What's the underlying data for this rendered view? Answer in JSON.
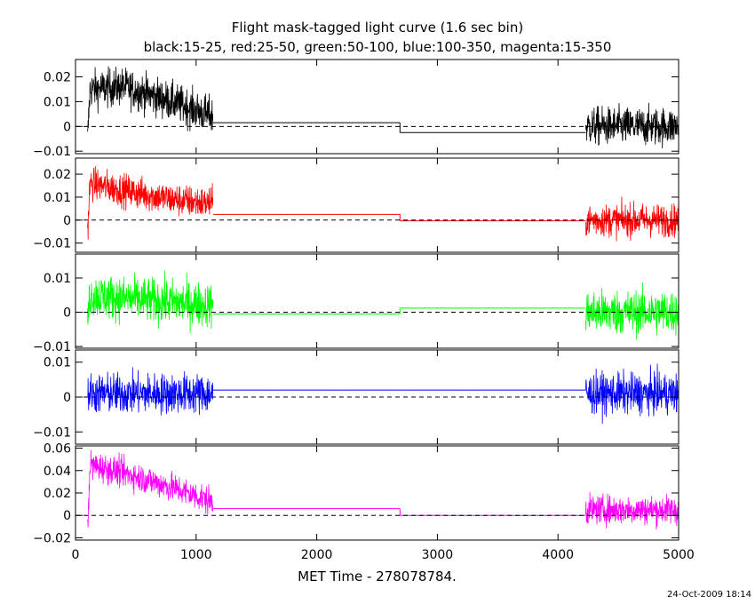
{
  "title": "Flight mask-tagged light curve (1.6 sec bin)",
  "subtitle": "black:15-25, red:25-50, green:50-100, blue:100-350, magenta:15-350",
  "xlabel": "MET Time - 278078784.",
  "timestamp": "24-Oct-2009 18:14",
  "chart_data": {
    "type": "line",
    "xlim": [
      0,
      5000
    ],
    "xticks": [
      "0",
      "1000",
      "2000",
      "3000",
      "4000",
      "5000"
    ],
    "zero_line": "dashed",
    "data_segments": [
      [
        100,
        1140
      ],
      [
        4230,
        5000
      ]
    ],
    "gap_intervals": [
      [
        1140,
        2690
      ],
      [
        2690,
        4230
      ]
    ],
    "panels": [
      {
        "name": "black:15-25",
        "color": "#000000",
        "ylim": [
          -0.011,
          0.027
        ],
        "yticks": [
          {
            "v": 0.02,
            "label": "0.02"
          },
          {
            "v": 0.01,
            "label": "0.01"
          },
          {
            "v": 0,
            "label": "0"
          },
          {
            "v": -0.01,
            "label": "−0.01"
          }
        ],
        "trend": [
          [
            100,
            -0.006
          ],
          [
            120,
            0.015
          ],
          [
            400,
            0.016
          ],
          [
            800,
            0.01
          ],
          [
            1140,
            0.004
          ],
          [
            4230,
            0.0
          ],
          [
            5000,
            0.0
          ]
        ],
        "noise": 0.006,
        "gap_levels": [
          0.0015,
          -0.0025
        ]
      },
      {
        "name": "red:25-50",
        "color": "#ff0000",
        "ylim": [
          -0.014,
          0.027
        ],
        "yticks": [
          {
            "v": 0.02,
            "label": "0.02"
          },
          {
            "v": 0.01,
            "label": "0.01"
          },
          {
            "v": 0,
            "label": "0"
          },
          {
            "v": -0.01,
            "label": "−0.01"
          }
        ],
        "trend": [
          [
            100,
            -0.006
          ],
          [
            120,
            0.016
          ],
          [
            400,
            0.013
          ],
          [
            800,
            0.009
          ],
          [
            1140,
            0.007
          ],
          [
            4230,
            0.0
          ],
          [
            5000,
            0.0
          ]
        ],
        "noise": 0.0055,
        "gap_levels": [
          0.0025,
          -0.0003
        ]
      },
      {
        "name": "green:50-100",
        "color": "#00ff00",
        "ylim": [
          -0.0105,
          0.017
        ],
        "yticks": [
          {
            "v": 0.01,
            "label": "0.01"
          },
          {
            "v": 0,
            "label": "0"
          },
          {
            "v": -0.01,
            "label": "−0.01"
          }
        ],
        "trend": [
          [
            100,
            -0.002
          ],
          [
            120,
            0.005
          ],
          [
            400,
            0.004
          ],
          [
            800,
            0.003
          ],
          [
            1140,
            0.002
          ],
          [
            4230,
            0.0
          ],
          [
            5000,
            0.0
          ]
        ],
        "noise": 0.005,
        "gap_levels": [
          -0.0005,
          0.0012
        ]
      },
      {
        "name": "blue:100-350",
        "color": "#0000ff",
        "ylim": [
          -0.0135,
          0.0135
        ],
        "yticks": [
          {
            "v": 0.01,
            "label": "0.01"
          },
          {
            "v": 0,
            "label": "0"
          },
          {
            "v": -0.01,
            "label": "−0.01"
          }
        ],
        "trend": [
          [
            100,
            0.001
          ],
          [
            1140,
            0.001
          ],
          [
            4230,
            0.001
          ],
          [
            5000,
            0.001
          ]
        ],
        "noise": 0.0045,
        "gap_levels": [
          0.002,
          0.002
        ]
      },
      {
        "name": "magenta:15-350",
        "color": "#ff00ff",
        "ylim": [
          -0.022,
          0.062
        ],
        "yticks": [
          {
            "v": 0.06,
            "label": "0.06"
          },
          {
            "v": 0.04,
            "label": "0.04"
          },
          {
            "v": 0.02,
            "label": "0.02"
          },
          {
            "v": 0,
            "label": "0"
          },
          {
            "v": -0.02,
            "label": "−0.02"
          }
        ],
        "trend": [
          [
            100,
            -0.015
          ],
          [
            120,
            0.045
          ],
          [
            400,
            0.038
          ],
          [
            800,
            0.025
          ],
          [
            1140,
            0.012
          ],
          [
            4230,
            0.005
          ],
          [
            5000,
            0.005
          ]
        ],
        "noise": 0.01,
        "gap_levels": [
          0.006,
          0.0
        ]
      }
    ]
  }
}
